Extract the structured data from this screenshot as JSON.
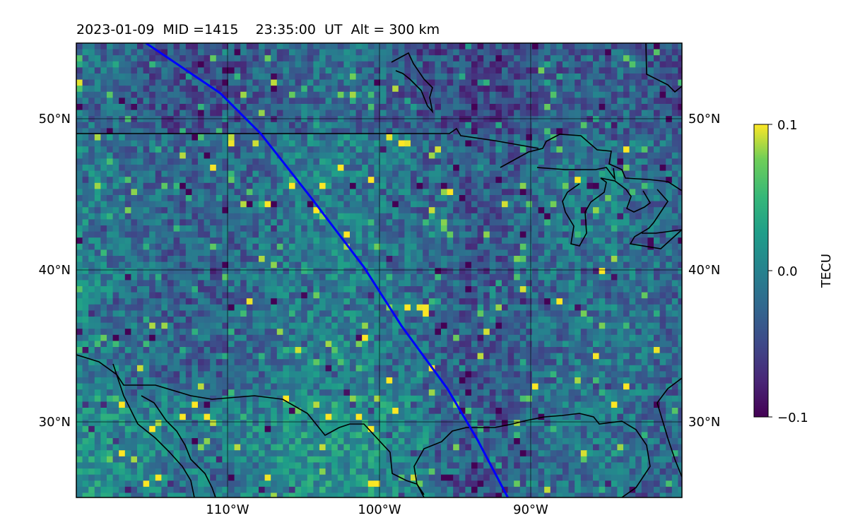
{
  "chart_data": {
    "type": "heatmap",
    "title": "2023-01-09  MID =1415    23:35:00  UT  Alt = 300 km",
    "map": {
      "lon_range": [
        -120,
        -80
      ],
      "lat_range": [
        25,
        55
      ],
      "lon_ticks": [
        "110°W",
        "100°W",
        "90°W"
      ],
      "lat_ticks_left": [
        "50°N",
        "40°N",
        "30°N"
      ],
      "lat_ticks_right": [
        "50°N",
        "40°N",
        "30°N"
      ],
      "grid": true,
      "coastlines": true,
      "country_borders": true
    },
    "colorbar": {
      "label": "TECU",
      "colormap": "viridis",
      "range": [
        -0.1,
        0.1
      ],
      "ticks": [
        "0.1",
        "0.0",
        "−0.1"
      ]
    },
    "track": {
      "color": "#0000ff",
      "lon": [
        -115.4,
        -110.5,
        -107.8,
        -104.5,
        -101.0,
        -98.5,
        -95.5,
        -93.5,
        -91.5
      ],
      "lat": [
        55.0,
        51.7,
        49.0,
        44.8,
        40.2,
        36.3,
        32.2,
        28.8,
        25.0
      ]
    },
    "colors": {
      "track": "#0000ff",
      "outline": "#000000"
    }
  }
}
